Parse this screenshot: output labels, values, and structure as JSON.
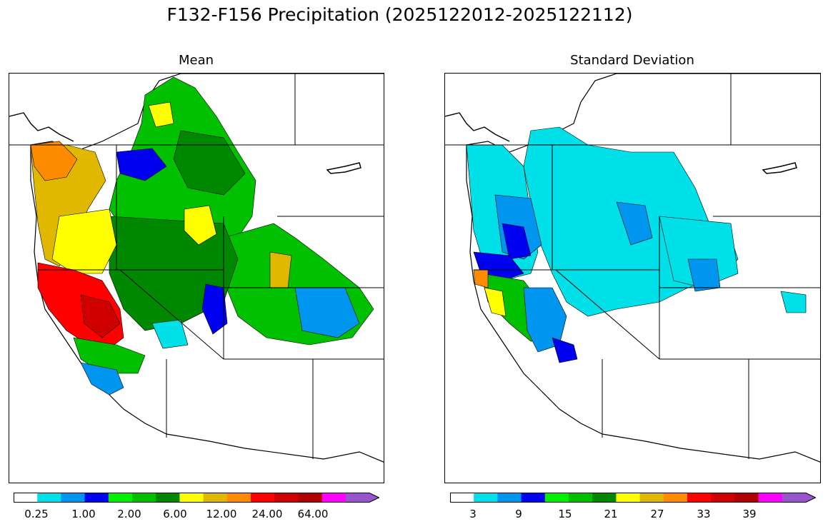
{
  "title": "F132-F156 Precipitation (2025122012-2025122112)",
  "panels": {
    "mean": {
      "title": "Mean",
      "colorbar_ticks": [
        "0.25",
        "1.00",
        "2.00",
        "6.00",
        "12.00",
        "24.00",
        "64.00"
      ]
    },
    "std": {
      "title": "Standard Deviation",
      "colorbar_ticks": [
        "3",
        "9",
        "15",
        "21",
        "27",
        "33",
        "39"
      ]
    }
  },
  "colorbar_colors": [
    "#ffffff",
    "#00e0e8",
    "#0096f0",
    "#0000f0",
    "#00f000",
    "#00c000",
    "#008800",
    "#ffff00",
    "#e0b800",
    "#ff8c00",
    "#ff0000",
    "#d00000",
    "#b00000",
    "#ff00ff",
    "#9955cc"
  ]
}
